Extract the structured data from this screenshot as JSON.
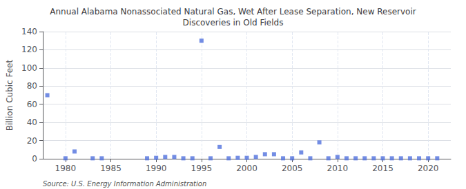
{
  "chart_data": {
    "type": "scatter",
    "title": "Annual Alabama Nonassociated Natural Gas, Wet After Lease Separation, New Reservoir\nDiscoveries in Old Fields",
    "ylabel": "Billion Cubic Feet",
    "source": "Source: U.S. Energy Information Administration",
    "x": [
      1978,
      1980,
      1981,
      1983,
      1984,
      1989,
      1990,
      1991,
      1992,
      1993,
      1994,
      1995,
      1996,
      1997,
      1998,
      1999,
      2000,
      2001,
      2002,
      2003,
      2004,
      2005,
      2006,
      2007,
      2008,
      2009,
      2010,
      2011,
      2012,
      2013,
      2014,
      2015,
      2016,
      2017,
      2018,
      2019,
      2020,
      2021
    ],
    "values": [
      70,
      0.5,
      8,
      0.5,
      0.5,
      0.5,
      1,
      2,
      2,
      0.5,
      0.5,
      130,
      0.5,
      13,
      0.5,
      1,
      1,
      2,
      5,
      5,
      0.5,
      0.5,
      7,
      0.5,
      18,
      0.5,
      2,
      0.5,
      0.5,
      0.5,
      0.5,
      0.5,
      0.5,
      0.5,
      0.5,
      0.5,
      0.5,
      0.5
    ],
    "xlim": [
      1977.5,
      2022.5
    ],
    "ylim": [
      0,
      140
    ],
    "xticks": [
      1980,
      1985,
      1990,
      1995,
      2000,
      2005,
      2010,
      2015,
      2020
    ],
    "yticks": [
      0,
      20,
      40,
      60,
      80,
      100,
      120,
      140
    ],
    "grid": true,
    "marker": "square"
  }
}
